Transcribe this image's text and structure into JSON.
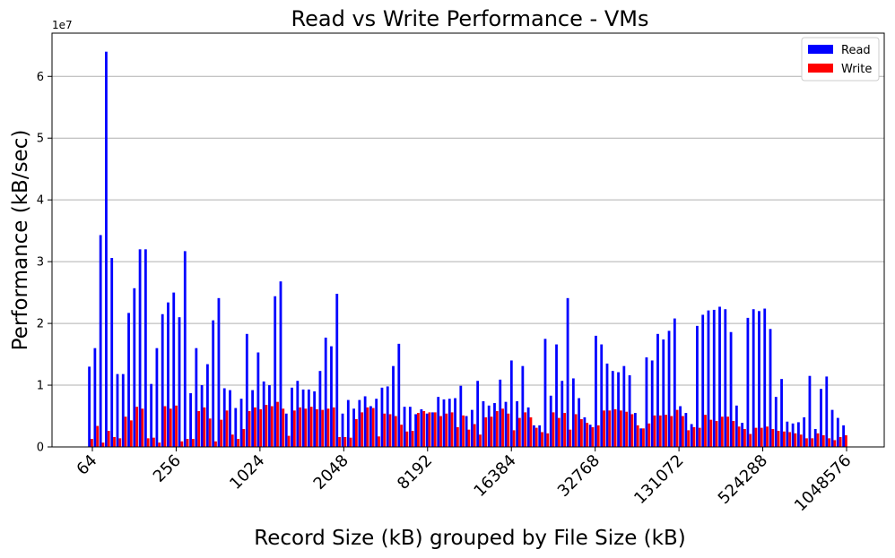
{
  "chart_data": {
    "type": "bar",
    "title": "Read vs Write Performance - VMs",
    "xlabel": "Record Size (kB) grouped by File Size (kB)",
    "ylabel": "Performance (kB/sec)",
    "y_multiplier_label": "1e7",
    "y_tick_labels": [
      "0",
      "1",
      "2",
      "3",
      "4",
      "5",
      "6"
    ],
    "x_tick_labels": [
      "64",
      "256",
      "1024",
      "2048",
      "8192",
      "16384",
      "32768",
      "131072",
      "524288",
      "1048576"
    ],
    "ylim": [
      0,
      67000000
    ],
    "grid": true,
    "grid_axis": "y",
    "legend_position": "top-right",
    "series": [
      {
        "name": "Read",
        "color": "#0000ff",
        "values": [
          13000000,
          16000000,
          34300000,
          64000000,
          30600000,
          11800000,
          11800000,
          21700000,
          25700000,
          32000000,
          32000000,
          10200000,
          16000000,
          21500000,
          23400000,
          25000000,
          21000000,
          31700000,
          8700000,
          16000000,
          10000000,
          13400000,
          20500000,
          24100000,
          9500000,
          9200000,
          6300000,
          7800000,
          18300000,
          9200000,
          15300000,
          10600000,
          10000000,
          24400000,
          26800000,
          5400000,
          9600000,
          10700000,
          9300000,
          9300000,
          9000000,
          12300000,
          17700000,
          16300000,
          24800000,
          5400000,
          7600000,
          6200000,
          7600000,
          8200000,
          6600000,
          7800000,
          9600000,
          9800000,
          13100000,
          16700000,
          6500000,
          6500000,
          5300000,
          6100000,
          5400000,
          5600000,
          8100000,
          7700000,
          7800000,
          7900000,
          9900000,
          5000000,
          6000000,
          10700000,
          7400000,
          6700000,
          7100000,
          10900000,
          7300000,
          14000000,
          7400000,
          13100000,
          6400000,
          3500000,
          3500000,
          17500000,
          8300000,
          16600000,
          10700000,
          24100000,
          11100000,
          7900000,
          4800000,
          3600000,
          18000000,
          16600000,
          13500000,
          12300000,
          12100000,
          13100000,
          11600000,
          5500000,
          3000000,
          14500000,
          14000000,
          18300000,
          17400000,
          18800000,
          20800000,
          6600000,
          5500000,
          3700000,
          19600000,
          21400000,
          22100000,
          22200000,
          22700000,
          22300000,
          18600000,
          6700000,
          3900000,
          20900000,
          22300000,
          22000000,
          22400000,
          19100000,
          8100000,
          11000000,
          4100000,
          3800000,
          4000000,
          4800000,
          11500000,
          2900000,
          9400000,
          11400000,
          6000000,
          4700000,
          3500000
        ]
      },
      {
        "name": "Write",
        "color": "#ff0000",
        "values": [
          1300000,
          3400000,
          700000,
          2600000,
          1600000,
          1400000,
          4900000,
          4300000,
          6500000,
          6200000,
          1400000,
          1500000,
          700000,
          6600000,
          6200000,
          6700000,
          900000,
          1300000,
          1300000,
          5800000,
          6400000,
          4600000,
          900000,
          4400000,
          5900000,
          2000000,
          1300000,
          2900000,
          5800000,
          6400000,
          6100000,
          6800000,
          6600000,
          7300000,
          6200000,
          1800000,
          5900000,
          6400000,
          6200000,
          6500000,
          6100000,
          6000000,
          6200000,
          6400000,
          1600000,
          1600000,
          1500000,
          4500000,
          5600000,
          6400000,
          6300000,
          1700000,
          5400000,
          5300000,
          5000000,
          3600000,
          2500000,
          2600000,
          5500000,
          5800000,
          5600000,
          5600000,
          5000000,
          5400000,
          5600000,
          3200000,
          5100000,
          2800000,
          3700000,
          2000000,
          4800000,
          4900000,
          5800000,
          6200000,
          5400000,
          2700000,
          4700000,
          5600000,
          4800000,
          3100000,
          2400000,
          2200000,
          5600000,
          4700000,
          5500000,
          2800000,
          5300000,
          4500000,
          3900000,
          3200000,
          3500000,
          5900000,
          5900000,
          6100000,
          5900000,
          5700000,
          5300000,
          3500000,
          3000000,
          3800000,
          5100000,
          5100000,
          5200000,
          5000000,
          6000000,
          5000000,
          2700000,
          3200000,
          3100000,
          5200000,
          4400000,
          4200000,
          4900000,
          4900000,
          4200000,
          3300000,
          2900000,
          2100000,
          3100000,
          3100000,
          3300000,
          2900000,
          2600000,
          2500000,
          2400000,
          2200000,
          2000000,
          1400000,
          1400000,
          2200000,
          1900000,
          1400000,
          1100000,
          1600000,
          1900000
        ]
      }
    ]
  }
}
